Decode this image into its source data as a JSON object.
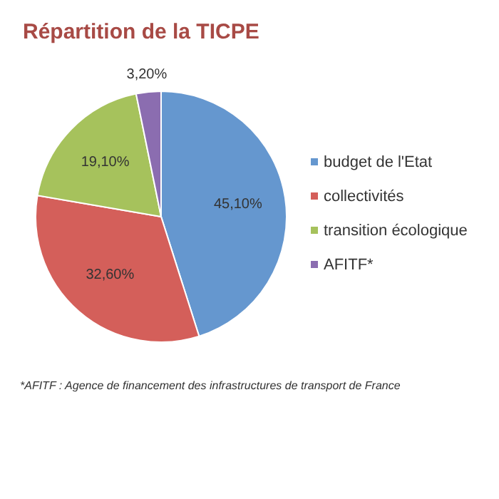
{
  "chart_data": {
    "type": "pie",
    "title": "Répartition de la TICPE",
    "categories": [
      "budget de l'Etat",
      "collectivités",
      "transition écologique",
      "AFITF*"
    ],
    "values": [
      45.1,
      32.6,
      19.1,
      3.2
    ],
    "colors": [
      "#6597cf",
      "#d45f5a",
      "#a6c25c",
      "#8b6db0"
    ],
    "value_labels": [
      "45,10%",
      "32,60%",
      "19,10%",
      "3,20%"
    ],
    "legend": "right",
    "annotations": [
      "*AFITF : Agence de financement des infrastructures de transport de France"
    ]
  }
}
